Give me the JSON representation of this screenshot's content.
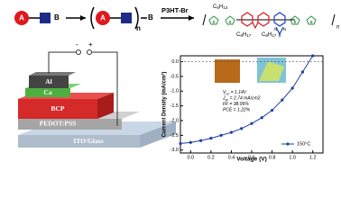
{
  "scheme": {
    "a1": "A",
    "b1": "B",
    "a2": "A",
    "b2": "B",
    "n": "n",
    "reagent": "P3HT-Br",
    "c6h13": [
      "C",
      "6",
      "H",
      "13"
    ],
    "c8h17a": [
      "C",
      "8",
      "H",
      "17"
    ],
    "c8h17b": [
      "C",
      "8",
      "H",
      "17"
    ],
    "s1": "S",
    "s2": "S",
    "s3": "S",
    "s4": "S",
    "n1": "N",
    "n2": "N",
    "s5": "S",
    "n3": "n"
  },
  "device": {
    "minus": "-",
    "plus": "+",
    "layers": [
      "Al",
      "Ca",
      "BCP",
      "PEDOT:PSS",
      "ITO/Glass"
    ]
  },
  "chart_data": {
    "type": "line",
    "xlabel": "Voltage (V)",
    "ylabel": "Current Density (mA/cm²)",
    "x": [
      -0.1,
      0,
      0.1,
      0.2,
      0.3,
      0.4,
      0.5,
      0.6,
      0.7,
      0.8,
      0.9,
      1.0,
      1.1,
      1.2
    ],
    "series": [
      {
        "name": "150°C",
        "color": "#1f3f9f",
        "values": [
          -2.78,
          -2.74,
          -2.68,
          -2.6,
          -2.5,
          -2.4,
          -2.27,
          -2.1,
          -1.9,
          -1.65,
          -1.3,
          -0.9,
          -0.35,
          0.2
        ]
      }
    ],
    "xlim": [
      -0.1,
      1.3
    ],
    "ylim": [
      -3.1,
      0.2
    ],
    "xticks": [
      {
        "value": 0,
        "label": "0.0"
      },
      0.2,
      0.4,
      0.6,
      0.8,
      {
        "value": 1,
        "label": "1.0"
      },
      1.2
    ],
    "yticks": [
      {
        "value": 0,
        "label": "0.0"
      },
      -0.5,
      {
        "value": -1,
        "label": "-1.0"
      },
      -1.5,
      {
        "value": -2,
        "label": "-2.0"
      },
      -2.5,
      {
        "value": -3,
        "label": "-3.0"
      }
    ],
    "annotations": [
      [
        "V",
        "oc",
        " = 1.14V"
      ],
      [
        "J",
        "sc",
        " = 2.74 mA/cm2"
      ],
      [
        "FF",
        " = 38.06%"
      ],
      [
        "PCE",
        " = 1.22%"
      ]
    ]
  }
}
